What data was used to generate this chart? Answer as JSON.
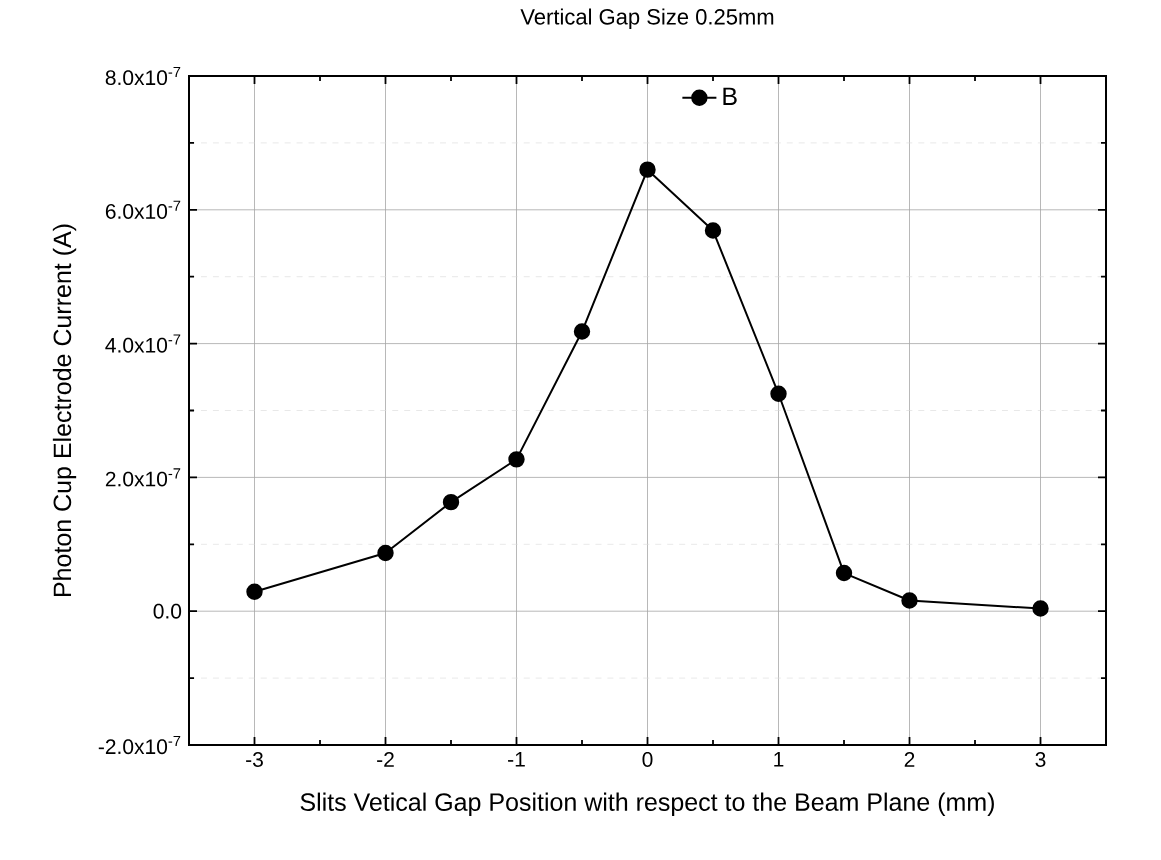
{
  "chart_data": {
    "type": "line",
    "title": "Vertical Gap Size 0.25mm",
    "xlabel": "Slits Vetical Gap Position with respect to the Beam Plane (mm)",
    "ylabel": "Photon Cup Electrode Current (A)",
    "x": [
      -3,
      -2,
      -1.5,
      -1,
      -0.5,
      0,
      0.5,
      1,
      1.5,
      2,
      3
    ],
    "series": [
      {
        "name": "B",
        "color": "#000000",
        "values": [
          2.9e-08,
          8.7e-08,
          1.63e-07,
          2.27e-07,
          4.18e-07,
          6.6e-07,
          5.69e-07,
          3.25e-07,
          5.7e-08,
          1.6e-08,
          4e-09
        ]
      }
    ],
    "xlim": [
      -3.5,
      3.5
    ],
    "ylim": [
      -2e-07,
      8e-07
    ],
    "xticks": [
      -3,
      -2,
      -1,
      0,
      1,
      2,
      3
    ],
    "yticks": [
      {
        "value": -2e-07,
        "label": "-2.0x10$^{-7}$"
      },
      {
        "value": 0,
        "label": "0.0"
      },
      {
        "value": 2e-07,
        "label": "2.0x10$^{-7}$"
      },
      {
        "value": 4e-07,
        "label": "4.0x10$^{-7}$"
      },
      {
        "value": 6e-07,
        "label": "6.0x10$^{-7}$"
      },
      {
        "value": 8e-07,
        "label": "8.0x10$^{-7}$"
      }
    ],
    "grid": true,
    "legend": "top",
    "marker": "circle",
    "line_style": "solid"
  }
}
